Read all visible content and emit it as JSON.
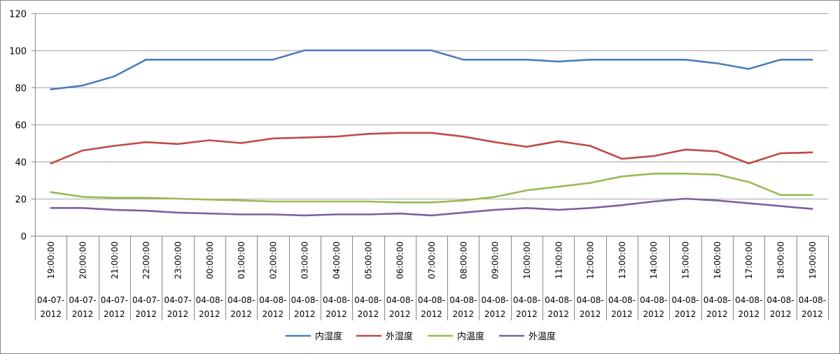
{
  "chart_data": {
    "type": "line",
    "title": "",
    "xlabel": "",
    "ylabel": "",
    "ylim": [
      0,
      120
    ],
    "yticks": [
      0,
      20,
      40,
      60,
      80,
      100,
      120
    ],
    "grid": true,
    "legend_position": "bottom",
    "categories": [
      {
        "time": "19:00:00",
        "date1": "04-07-",
        "date2": "2012"
      },
      {
        "time": "20:00:00",
        "date1": "04-07-",
        "date2": "2012"
      },
      {
        "time": "21:00:00",
        "date1": "04-07-",
        "date2": "2012"
      },
      {
        "time": "22:00:00",
        "date1": "04-07-",
        "date2": "2012"
      },
      {
        "time": "23:00:00",
        "date1": "04-07-",
        "date2": "2012"
      },
      {
        "time": "00:00:00",
        "date1": "04-08-",
        "date2": "2012"
      },
      {
        "time": "01:00:00",
        "date1": "04-08-",
        "date2": "2012"
      },
      {
        "time": "02:00:00",
        "date1": "04-08-",
        "date2": "2012"
      },
      {
        "time": "03:00:00",
        "date1": "04-08-",
        "date2": "2012"
      },
      {
        "time": "04:00:00",
        "date1": "04-08-",
        "date2": "2012"
      },
      {
        "time": "05:00:00",
        "date1": "04-08-",
        "date2": "2012"
      },
      {
        "time": "06:00:00",
        "date1": "04-08-",
        "date2": "2012"
      },
      {
        "time": "07:00:00",
        "date1": "04-08-",
        "date2": "2012"
      },
      {
        "time": "08:00:00",
        "date1": "04-08-",
        "date2": "2012"
      },
      {
        "time": "09:00:00",
        "date1": "04-08-",
        "date2": "2012"
      },
      {
        "time": "10:00:00",
        "date1": "04-08-",
        "date2": "2012"
      },
      {
        "time": "11:00:00",
        "date1": "04-08-",
        "date2": "2012"
      },
      {
        "time": "12:00:00",
        "date1": "04-08-",
        "date2": "2012"
      },
      {
        "time": "13:00:00",
        "date1": "04-08-",
        "date2": "2012"
      },
      {
        "time": "14:00:00",
        "date1": "04-08-",
        "date2": "2012"
      },
      {
        "time": "15:00:00",
        "date1": "04-08-",
        "date2": "2012"
      },
      {
        "time": "16:00:00",
        "date1": "04-08-",
        "date2": "2012"
      },
      {
        "time": "17:00:00",
        "date1": "04-08-",
        "date2": "2012"
      },
      {
        "time": "18:00:00",
        "date1": "04-08-",
        "date2": "2012"
      },
      {
        "time": "19:00:00",
        "date1": "04-08-",
        "date2": "2012"
      }
    ],
    "series": [
      {
        "name": "内湿度",
        "color": "#4a7ebb",
        "values": [
          79,
          81,
          86,
          95,
          95,
          95,
          95,
          95,
          100,
          100,
          100,
          100,
          100,
          95,
          95,
          95,
          94,
          95,
          95,
          95,
          95,
          93,
          90,
          95,
          95
        ]
      },
      {
        "name": "外湿度",
        "color": "#be4b48",
        "values": [
          39,
          46,
          48.5,
          50.5,
          49.5,
          51.5,
          50,
          52.5,
          53,
          53.5,
          55,
          55.5,
          55.5,
          53.5,
          50.5,
          48,
          51,
          48.5,
          41.5,
          43,
          46.5,
          45.5,
          39,
          44.5,
          45
        ]
      },
      {
        "name": "内温度",
        "color": "#98b954",
        "values": [
          23.5,
          21,
          20.5,
          20.5,
          20,
          19.5,
          19,
          18.5,
          18.5,
          18.5,
          18.5,
          18,
          18,
          19,
          21,
          24.5,
          26.5,
          28.5,
          32,
          33.5,
          33.5,
          33,
          29,
          22,
          22
        ]
      },
      {
        "name": "外温度",
        "color": "#7d60a0",
        "values": [
          15,
          15,
          14,
          13.5,
          12.5,
          12,
          11.5,
          11.5,
          11,
          11.5,
          11.5,
          12,
          11,
          12.5,
          14,
          15,
          14,
          15,
          16.5,
          18.5,
          20,
          19,
          17.5,
          16,
          14.5
        ]
      }
    ]
  }
}
